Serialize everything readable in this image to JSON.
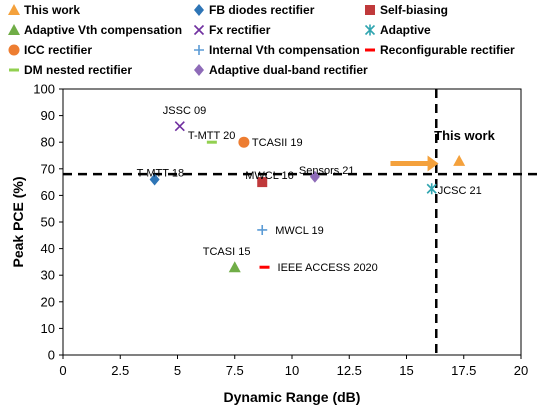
{
  "chart_data": {
    "type": "scatter",
    "title": "",
    "xlabel": "Dynamic Range (dB)",
    "ylabel": "Peak PCE (%)",
    "xlim": [
      0,
      20
    ],
    "ylim": [
      0,
      100
    ],
    "xticks": [
      "0",
      "2.5",
      "5",
      "7.5",
      "10",
      "12.5",
      "15",
      "17.5",
      "20"
    ],
    "yticks": [
      "0",
      "10",
      "20",
      "30",
      "40",
      "50",
      "60",
      "70",
      "80",
      "90",
      "100"
    ],
    "grid": false,
    "legend_position": "top",
    "series": [
      {
        "name": "This work",
        "marker": "triangle",
        "color": "#F4A13C",
        "points": [
          {
            "x": 17.3,
            "y": 73,
            "label": "This work"
          }
        ]
      },
      {
        "name": "FB diodes rectifier",
        "marker": "diamond",
        "color": "#2E75B6",
        "points": [
          {
            "x": 4.0,
            "y": 66,
            "label": "T-MTT 18"
          }
        ]
      },
      {
        "name": "Self-biasing",
        "marker": "square",
        "color": "#C0393B",
        "points": [
          {
            "x": 8.7,
            "y": 65,
            "label": "MWCL 16"
          }
        ]
      },
      {
        "name": "Adaptive Vth compensation",
        "marker": "triangle",
        "color": "#70AD47",
        "points": [
          {
            "x": 7.5,
            "y": 33,
            "label": "TCASI 15"
          }
        ]
      },
      {
        "name": "Fx rectifier",
        "marker": "x",
        "color": "#7030A0",
        "points": [
          {
            "x": 5.1,
            "y": 86,
            "label": "JSSC 09"
          }
        ]
      },
      {
        "name": "Adaptive",
        "marker": "star",
        "color": "#31A5B0",
        "points": [
          {
            "x": 16.1,
            "y": 62.5,
            "label": "JCSC 21"
          }
        ]
      },
      {
        "name": "ICC rectifier",
        "marker": "circle",
        "color": "#ED7D31",
        "points": [
          {
            "x": 7.9,
            "y": 80,
            "label": "TCASII 19"
          }
        ]
      },
      {
        "name": "Internal Vth compensation",
        "marker": "plus",
        "color": "#5B9BD5",
        "points": [
          {
            "x": 8.7,
            "y": 47,
            "label": "MWCL 19"
          }
        ]
      },
      {
        "name": "Reconfigurable rectifier",
        "marker": "dash",
        "color": "#FF0000",
        "points": [
          {
            "x": 8.8,
            "y": 33,
            "label": "IEEE ACCESS 2020"
          }
        ]
      },
      {
        "name": "DM nested rectifier",
        "marker": "dash",
        "color": "#92D050",
        "points": [
          {
            "x": 6.5,
            "y": 80,
            "label": "T-MTT 20"
          }
        ]
      },
      {
        "name": "Adaptive dual-band rectifier",
        "marker": "diamond",
        "color": "#8E6BB8",
        "points": [
          {
            "x": 11.0,
            "y": 67,
            "label": "Sensors 21"
          }
        ]
      }
    ],
    "reference_lines": [
      {
        "orientation": "horizontal",
        "value": 68,
        "style": "dashed"
      },
      {
        "orientation": "vertical",
        "value": 16.3,
        "style": "dashed"
      }
    ],
    "arrow": {
      "from": [
        14.3,
        72
      ],
      "to": [
        16.4,
        72
      ],
      "color": "#F4A13C"
    }
  }
}
